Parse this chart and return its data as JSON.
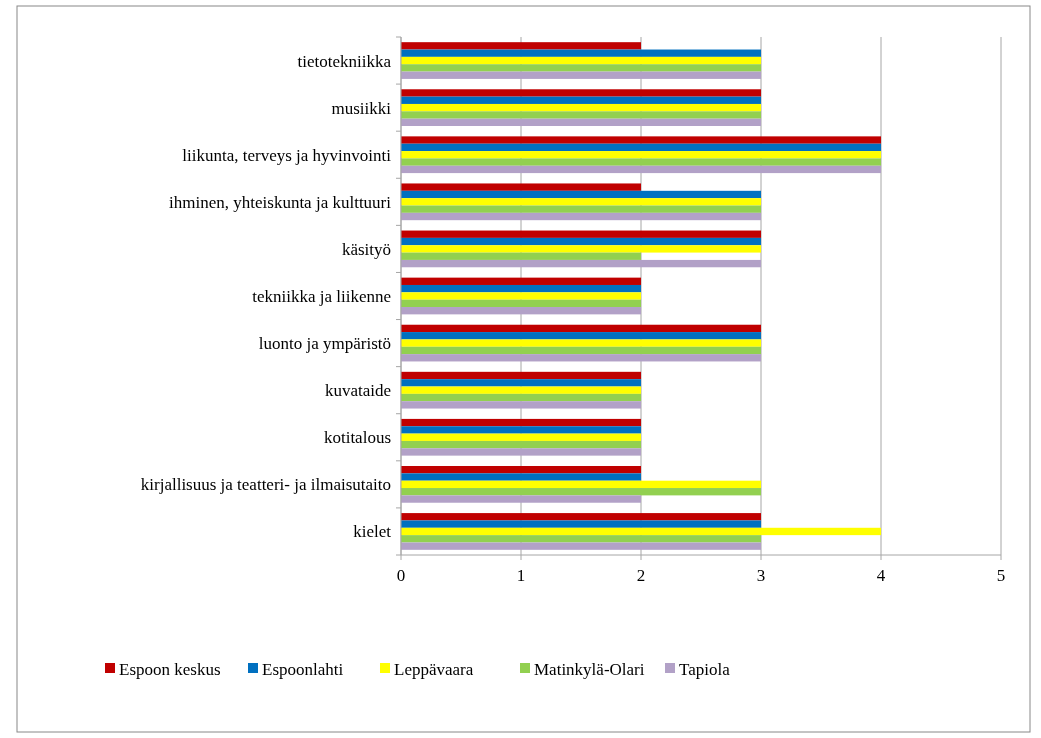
{
  "chart_data": {
    "type": "bar",
    "orientation": "horizontal",
    "categories": [
      "tietotekniikka",
      "musiikki",
      "liikunta, terveys ja hyvinvointi",
      "ihminen, yhteiskunta ja kulttuuri",
      "käsityö",
      "tekniikka ja liikenne",
      "luonto ja ympäristö",
      "kuvataide",
      "kotitalous",
      "kirjallisuus ja teatteri- ja ilmaisutaito",
      "kielet"
    ],
    "series": [
      {
        "name": "Espoon keskus",
        "color": "#c00000",
        "values": [
          2,
          3,
          4,
          2,
          3,
          2,
          3,
          2,
          2,
          2,
          3
        ]
      },
      {
        "name": "Espoonlahti",
        "color": "#0070c0",
        "values": [
          3,
          3,
          4,
          3,
          3,
          2,
          3,
          2,
          2,
          2,
          3
        ]
      },
      {
        "name": "Leppävaara",
        "color": "#ffff00",
        "values": [
          3,
          3,
          4,
          3,
          3,
          2,
          3,
          2,
          2,
          3,
          4
        ]
      },
      {
        "name": "Matinkylä-Olari",
        "color": "#92d050",
        "values": [
          3,
          3,
          4,
          3,
          2,
          2,
          3,
          2,
          2,
          3,
          3
        ]
      },
      {
        "name": "Tapiola",
        "color": "#b2a1c7",
        "values": [
          3,
          3,
          4,
          3,
          3,
          2,
          3,
          2,
          2,
          2,
          3
        ]
      }
    ],
    "xlim": [
      0,
      5
    ],
    "xticks": [
      0,
      1,
      2,
      3,
      4,
      5
    ],
    "grid": "x",
    "legend": "bottom"
  }
}
